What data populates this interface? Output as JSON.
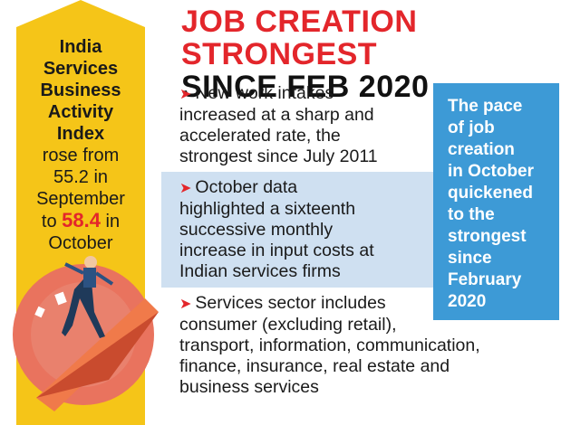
{
  "headline": {
    "line1": "JOB CREATION STRONGEST",
    "line2": "SINCE FEB 2020"
  },
  "index_box": {
    "title_lines": [
      "India",
      "Services",
      "Business",
      "Activity",
      "Index"
    ],
    "line1": "rose from",
    "line2": "55.2 in",
    "line3": "September",
    "line4_prefix": "to",
    "highlight_value": "58.4",
    "line4_suffix": "in",
    "line5": "October"
  },
  "bullets": [
    {
      "lines": [
        "New work intakes",
        "increased at a sharp and",
        "accelerated rate, the",
        "strongest since July 2011"
      ]
    },
    {
      "lines": [
        "October data",
        "highlighted a sixteenth",
        "successive monthly",
        "increase in input costs at",
        "Indian services firms"
      ]
    },
    {
      "lines": [
        "Services sector includes",
        "consumer (excluding retail),",
        "transport, information, communication,",
        "finance, insurance, real estate and",
        "business services"
      ]
    }
  ],
  "blue_box": {
    "lines": [
      "The pace",
      "of job",
      "creation",
      "in October",
      "quickened",
      "to the",
      "strongest",
      "since",
      "February",
      "2020"
    ]
  },
  "colors": {
    "accent_red": "#e3262b",
    "yellow": "#f5c518",
    "blue": "#3d9ad6",
    "light_blue": "#cfe0f1"
  }
}
